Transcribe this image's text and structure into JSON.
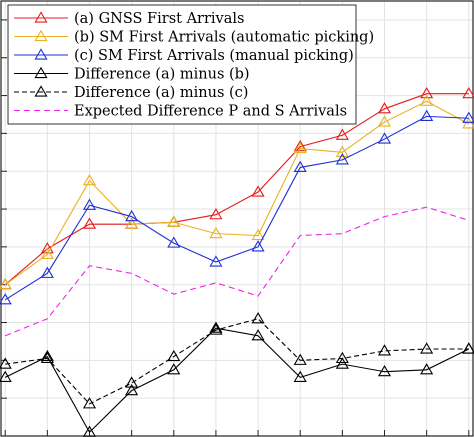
{
  "chart_data": {
    "type": "line",
    "title": "",
    "xlabel": "",
    "ylabel": "",
    "x": [
      1,
      2,
      3,
      4,
      5,
      6,
      7,
      8,
      9,
      10,
      11,
      12
    ],
    "xlim": [
      0.9,
      12.1
    ],
    "ylim": [
      0,
      11.5
    ],
    "grid": true,
    "legend_position": "top-left",
    "series": [
      {
        "name": "(a) GNSS First Arrivals",
        "color": "#e41a1c",
        "marker": "triangle",
        "dash": "solid",
        "values": [
          4.0,
          4.95,
          5.6,
          5.6,
          5.65,
          5.85,
          6.45,
          7.65,
          7.95,
          8.65,
          9.05,
          9.05
        ]
      },
      {
        "name": "(b) SM First Arrivals (automatic picking)",
        "color": "#e8b222",
        "marker": "triangle",
        "dash": "solid",
        "values": [
          4.0,
          4.8,
          6.75,
          5.6,
          5.65,
          5.35,
          5.3,
          7.6,
          7.5,
          8.3,
          8.85,
          8.25
        ]
      },
      {
        "name": "(c) SM First Arrivals (manual picking)",
        "color": "#1f2fd6",
        "marker": "triangle",
        "dash": "solid",
        "values": [
          3.6,
          4.3,
          6.1,
          5.8,
          5.1,
          4.6,
          5.0,
          7.1,
          7.3,
          7.85,
          8.45,
          8.4
        ]
      },
      {
        "name": "Difference (a) minus (b)",
        "color": "#000000",
        "marker": "triangle",
        "dash": "solid",
        "values": [
          1.55,
          2.1,
          0.1,
          1.2,
          1.75,
          2.85,
          2.65,
          1.55,
          1.9,
          1.7,
          1.75,
          2.3
        ]
      },
      {
        "name": "Difference (a) minus (c)",
        "color": "#000000",
        "marker": "triangle",
        "dash": "dashed",
        "values": [
          1.9,
          2.05,
          0.85,
          1.4,
          2.1,
          2.8,
          3.1,
          2.0,
          2.05,
          2.25,
          2.3,
          2.3
        ]
      },
      {
        "name": "Expected Difference P and S Arrivals",
        "color": "#ee22ee",
        "marker": "none",
        "dash": "dashed",
        "values": [
          2.65,
          3.1,
          4.5,
          4.3,
          3.75,
          4.05,
          3.7,
          5.3,
          5.35,
          5.8,
          6.05,
          5.7
        ]
      }
    ]
  }
}
